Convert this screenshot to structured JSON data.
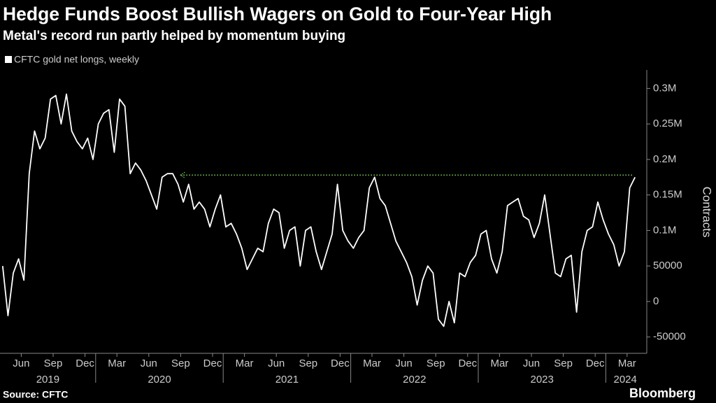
{
  "chart_data": {
    "type": "line",
    "title": "Hedge Funds Boost Bullish Wagers on Gold to Four-Year High",
    "subtitle": "Metal's record run partly helped by momentum buying",
    "y_label": "Contracts",
    "source": "Source: CFTC",
    "brand": "Bloomberg",
    "x": [
      "2019-04",
      "2019-04",
      "2019-05",
      "2019-05",
      "2019-06",
      "2019-06",
      "2019-07",
      "2019-07",
      "2019-08",
      "2019-08",
      "2019-09",
      "2019-09",
      "2019-10",
      "2019-10",
      "2019-11",
      "2019-11",
      "2019-12",
      "2019-12",
      "2020-01",
      "2020-01",
      "2020-02",
      "2020-02",
      "2020-03",
      "2020-03",
      "2020-04",
      "2020-04",
      "2020-05",
      "2020-05",
      "2020-06",
      "2020-06",
      "2020-07",
      "2020-07",
      "2020-08",
      "2020-08",
      "2020-09",
      "2020-09",
      "2020-10",
      "2020-10",
      "2020-11",
      "2020-11",
      "2020-12",
      "2020-12",
      "2021-01",
      "2021-01",
      "2021-02",
      "2021-02",
      "2021-03",
      "2021-03",
      "2021-04",
      "2021-04",
      "2021-05",
      "2021-05",
      "2021-06",
      "2021-06",
      "2021-07",
      "2021-07",
      "2021-08",
      "2021-08",
      "2021-09",
      "2021-09",
      "2021-10",
      "2021-10",
      "2021-11",
      "2021-11",
      "2021-12",
      "2021-12",
      "2022-01",
      "2022-01",
      "2022-02",
      "2022-02",
      "2022-03",
      "2022-03",
      "2022-04",
      "2022-04",
      "2022-05",
      "2022-05",
      "2022-06",
      "2022-06",
      "2022-07",
      "2022-07",
      "2022-08",
      "2022-08",
      "2022-09",
      "2022-09",
      "2022-10",
      "2022-10",
      "2022-11",
      "2022-11",
      "2022-12",
      "2022-12",
      "2023-01",
      "2023-01",
      "2023-02",
      "2023-02",
      "2023-03",
      "2023-03",
      "2023-04",
      "2023-04",
      "2023-05",
      "2023-05",
      "2023-06",
      "2023-06",
      "2023-07",
      "2023-07",
      "2023-08",
      "2023-08",
      "2023-09",
      "2023-09",
      "2023-10",
      "2023-10",
      "2023-11",
      "2023-11",
      "2023-12",
      "2023-12",
      "2024-01",
      "2024-01",
      "2024-02",
      "2024-02",
      "2024-03",
      "2024-03"
    ],
    "series": [
      {
        "name": "CFTC gold net longs, weekly",
        "color": "#ffffff",
        "values": [
          50000,
          -20000,
          40000,
          60000,
          30000,
          180000,
          240000,
          215000,
          230000,
          285000,
          290000,
          250000,
          292000,
          240000,
          225000,
          215000,
          230000,
          200000,
          250000,
          265000,
          270000,
          210000,
          285000,
          275000,
          180000,
          195000,
          185000,
          170000,
          150000,
          130000,
          175000,
          180000,
          180000,
          165000,
          140000,
          165000,
          130000,
          140000,
          130000,
          105000,
          130000,
          150000,
          105000,
          110000,
          95000,
          75000,
          45000,
          60000,
          75000,
          70000,
          110000,
          130000,
          125000,
          75000,
          100000,
          105000,
          50000,
          100000,
          105000,
          70000,
          45000,
          70000,
          95000,
          165000,
          100000,
          85000,
          75000,
          90000,
          100000,
          160000,
          175000,
          145000,
          135000,
          110000,
          85000,
          70000,
          55000,
          35000,
          -5000,
          30000,
          50000,
          40000,
          -25000,
          -35000,
          0,
          -30000,
          40000,
          35000,
          55000,
          65000,
          95000,
          100000,
          60000,
          40000,
          70000,
          135000,
          140000,
          145000,
          120000,
          115000,
          90000,
          110000,
          150000,
          95000,
          40000,
          35000,
          60000,
          65000,
          -15000,
          70000,
          100000,
          105000,
          140000,
          115000,
          95000,
          80000,
          50000,
          70000,
          160000,
          175000
        ]
      }
    ],
    "reference_line": {
      "value": 178000,
      "from": "2020-09",
      "color": "#7ed957"
    },
    "ylim": [
      -73000,
      326000
    ],
    "yticks": [
      -50000,
      0,
      50000,
      {
        "value": 100000,
        "label": "0.1M"
      },
      {
        "value": 150000,
        "label": "0.15M"
      },
      {
        "value": 200000,
        "label": "0.2M"
      },
      {
        "value": 250000,
        "label": "0.25M"
      },
      {
        "value": 300000,
        "label": "0.3M"
      }
    ],
    "xticks": [
      {
        "value": "2019-06",
        "label": "Jun"
      },
      {
        "value": "2019-09",
        "label": "Sep"
      },
      {
        "value": "2019-12",
        "label": "Dec"
      },
      {
        "value": "2020-03",
        "label": "Mar"
      },
      {
        "value": "2020-06",
        "label": "Jun"
      },
      {
        "value": "2020-09",
        "label": "Sep"
      },
      {
        "value": "2020-12",
        "label": "Dec"
      },
      {
        "value": "2021-03",
        "label": "Mar"
      },
      {
        "value": "2021-06",
        "label": "Jun"
      },
      {
        "value": "2021-09",
        "label": "Sep"
      },
      {
        "value": "2021-12",
        "label": "Dec"
      },
      {
        "value": "2022-03",
        "label": "Mar"
      },
      {
        "value": "2022-06",
        "label": "Jun"
      },
      {
        "value": "2022-09",
        "label": "Sep"
      },
      {
        "value": "2022-12",
        "label": "Dec"
      },
      {
        "value": "2023-03",
        "label": "Mar"
      },
      {
        "value": "2023-06",
        "label": "Jun"
      },
      {
        "value": "2023-09",
        "label": "Sep"
      },
      {
        "value": "2023-12",
        "label": "Dec"
      },
      {
        "value": "2024-03",
        "label": "Mar"
      }
    ],
    "xyears": [
      "2019",
      "2020",
      "2021",
      "2022",
      "2023",
      "2024"
    ]
  }
}
